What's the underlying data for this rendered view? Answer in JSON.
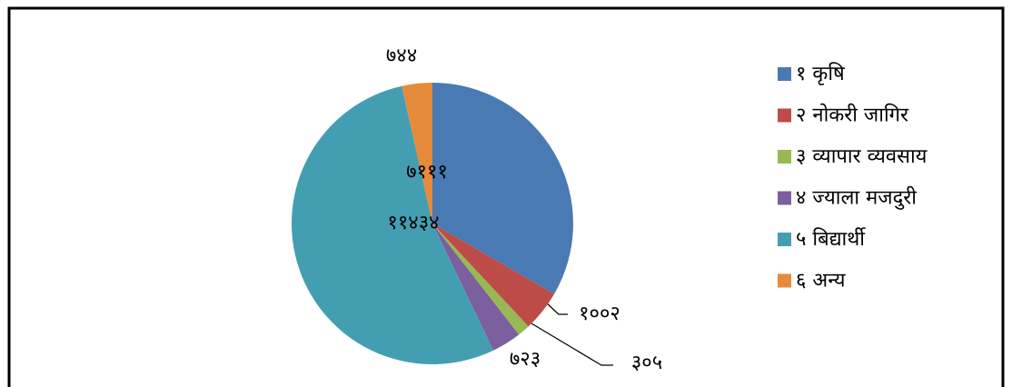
{
  "chart_data": {
    "type": "pie",
    "categories": [
      "१ कृषि",
      "२ नोकरी जागिर",
      "३ व्यापार व्यवसाय",
      "४ ज्याला मजदुरी",
      "५ बिद्यार्थी",
      "६ अन्य"
    ],
    "values": [
      7111,
      1002,
      305,
      723,
      11434,
      744
    ],
    "value_labels": [
      "७१११",
      "१००२",
      "३०५",
      "७२३",
      "११४३४",
      "७४४"
    ],
    "colors": [
      "#4a7ab3",
      "#bd4b48",
      "#97b853",
      "#7c5f9f",
      "#449eb2",
      "#e68a3c"
    ],
    "legend": "right"
  }
}
